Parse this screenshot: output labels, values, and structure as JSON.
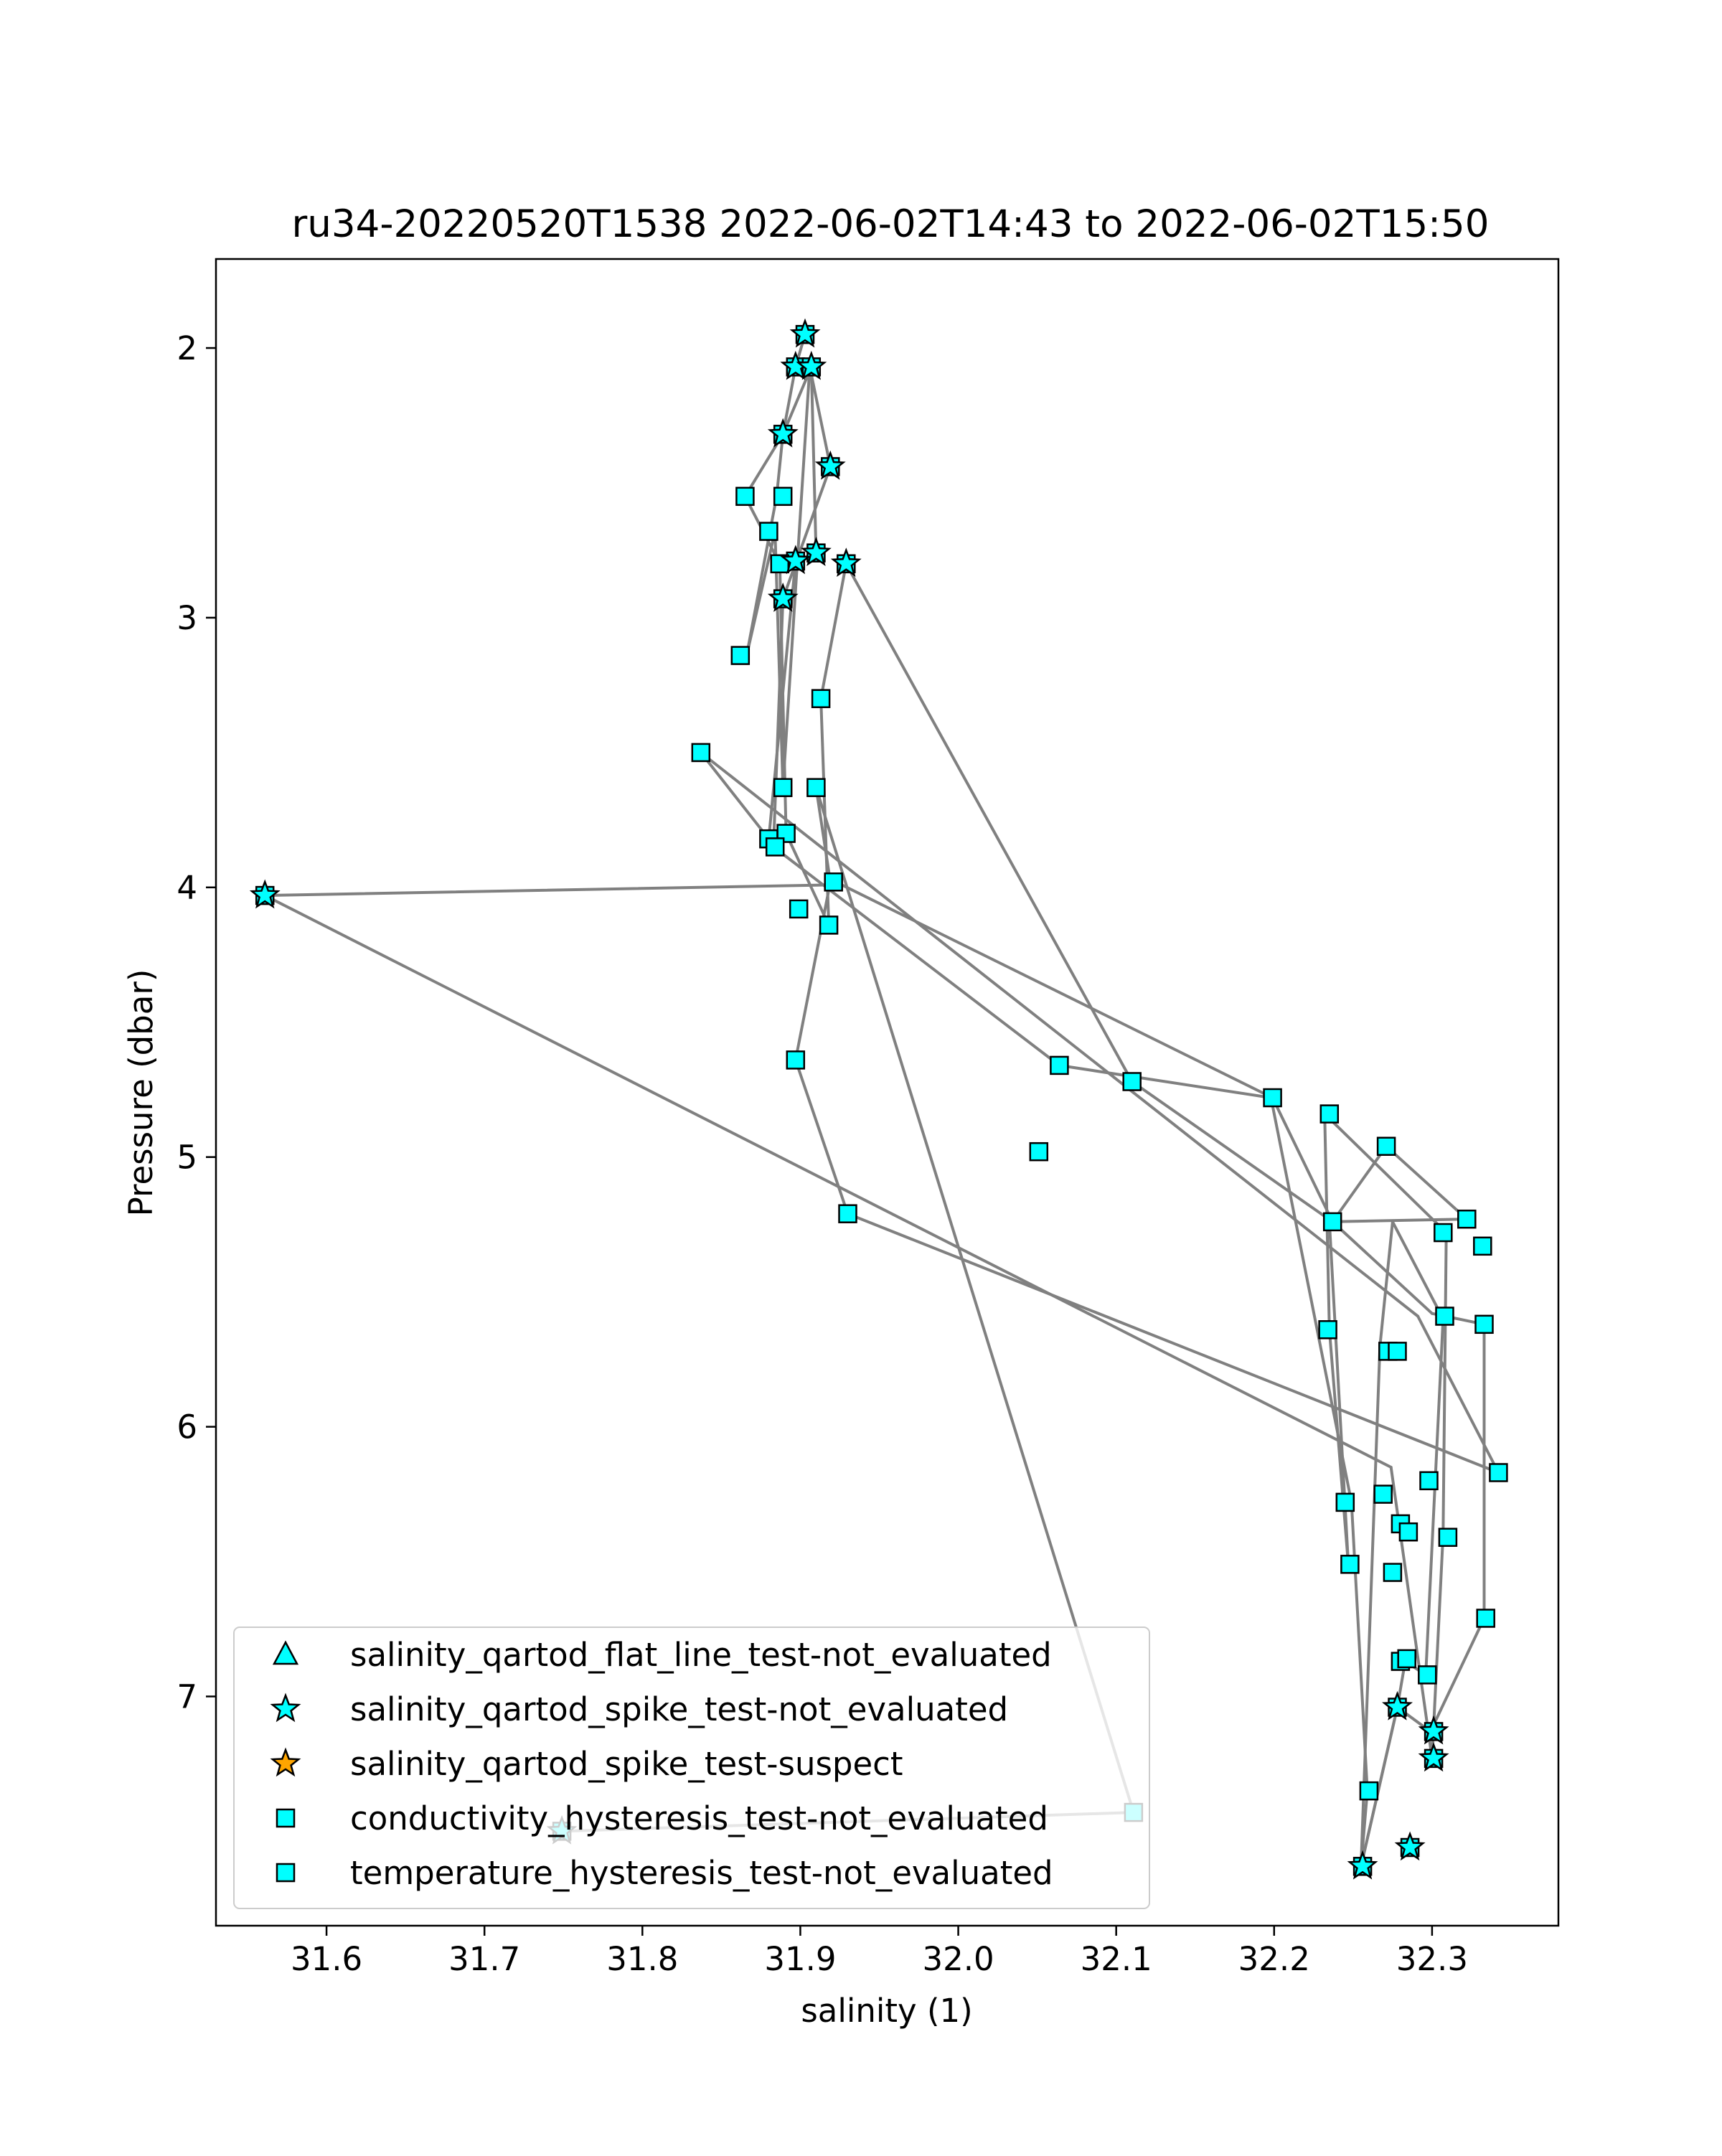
{
  "chart_data": {
    "type": "line",
    "title": "ru34-20220520T1538 2022-06-02T14:43 to 2022-06-02T15:50",
    "xlabel": "salinity (1)",
    "ylabel": "Pressure (dbar)",
    "xlim": [
      31.53,
      32.38
    ],
    "ylim": [
      7.85,
      1.67
    ],
    "y_inverted": true,
    "grid": false,
    "legend_position": "lower-left",
    "xticks": [
      "31.6",
      "31.7",
      "31.8",
      "31.9",
      "32.0",
      "32.1",
      "32.2",
      "32.3"
    ],
    "yticks": [
      "2",
      "3",
      "4",
      "5",
      "6",
      "7"
    ],
    "colors": {
      "line": "#808080",
      "marker_fill": "#00ffff",
      "suspect_fill": "#ffa500",
      "marker_edge": "#000000"
    },
    "path": [
      [
        31.903,
        1.95
      ],
      [
        31.897,
        2.07
      ],
      [
        31.889,
        2.32
      ],
      [
        31.885,
        2.55
      ],
      [
        31.866,
        3.14
      ],
      [
        31.884,
        2.68
      ],
      [
        31.889,
        3.63
      ],
      [
        31.906,
        2.07
      ],
      [
        31.919,
        2.44
      ],
      [
        31.889,
        2.93
      ],
      [
        31.883,
        3.85
      ],
      [
        32.064,
        4.66
      ],
      [
        32.198,
        4.78
      ],
      [
        32.249,
        6.28
      ],
      [
        32.259,
        7.35
      ],
      [
        32.255,
        7.63
      ],
      [
        32.278,
        7.04
      ],
      [
        32.283,
        6.87
      ],
      [
        32.296,
        6.92
      ],
      [
        32.307,
        5.6
      ],
      [
        32.275,
        5.24
      ],
      [
        32.267,
        5.7
      ],
      [
        32.255,
        7.63
      ],
      [
        32.278,
        7.04
      ],
      [
        32.299,
        7.13
      ],
      [
        32.333,
        6.71
      ],
      [
        32.333,
        5.62
      ],
      [
        32.3,
        5.58
      ],
      [
        32.237,
        5.24
      ],
      [
        32.199,
        4.78
      ],
      [
        31.926,
        3.99
      ],
      [
        31.561,
        4.03
      ],
      [
        32.274,
        6.15
      ],
      [
        32.3,
        7.23
      ],
      [
        32.307,
        6.4
      ],
      [
        32.309,
        5.28
      ],
      [
        32.232,
        4.84
      ],
      [
        32.235,
        5.64
      ],
      [
        32.247,
        6.51
      ],
      [
        32.235,
        5.24
      ],
      [
        32.322,
        5.23
      ],
      [
        32.271,
        4.96
      ],
      [
        32.237,
        5.24
      ],
      [
        32.11,
        4.72
      ],
      [
        31.929,
        2.8
      ],
      [
        31.913,
        3.3
      ],
      [
        31.918,
        4.14
      ],
      [
        31.891,
        3.8
      ],
      [
        31.887,
        2.8
      ],
      [
        31.865,
        2.55
      ],
      [
        31.889,
        2.32
      ],
      [
        31.907,
        2.07
      ],
      [
        31.91,
        2.76
      ],
      [
        31.897,
        2.79
      ],
      [
        31.88,
        3.82
      ],
      [
        31.837,
        3.5
      ],
      [
        32.291,
        5.59
      ],
      [
        32.342,
        6.17
      ],
      [
        31.93,
        5.21
      ],
      [
        31.897,
        4.64
      ],
      [
        31.919,
        3.98
      ],
      [
        31.91,
        3.63
      ],
      [
        32.111,
        7.43
      ],
      [
        31.749,
        7.5
      ]
    ],
    "square_markers": [
      [
        31.903,
        1.95
      ],
      [
        31.897,
        2.07
      ],
      [
        31.907,
        2.07
      ],
      [
        31.889,
        2.32
      ],
      [
        31.919,
        2.44
      ],
      [
        31.865,
        2.55
      ],
      [
        31.889,
        2.55
      ],
      [
        31.88,
        2.68
      ],
      [
        31.91,
        2.76
      ],
      [
        31.897,
        2.79
      ],
      [
        31.887,
        2.8
      ],
      [
        31.929,
        2.8
      ],
      [
        31.889,
        2.93
      ],
      [
        31.862,
        3.14
      ],
      [
        31.913,
        3.3
      ],
      [
        31.837,
        3.5
      ],
      [
        31.889,
        3.63
      ],
      [
        31.91,
        3.63
      ],
      [
        31.891,
        3.8
      ],
      [
        31.88,
        3.82
      ],
      [
        31.884,
        3.85
      ],
      [
        31.561,
        4.03
      ],
      [
        31.921,
        3.98
      ],
      [
        31.899,
        4.08
      ],
      [
        31.918,
        4.14
      ],
      [
        31.897,
        4.64
      ],
      [
        32.064,
        4.66
      ],
      [
        32.11,
        4.72
      ],
      [
        32.199,
        4.78
      ],
      [
        32.235,
        4.84
      ],
      [
        32.271,
        4.96
      ],
      [
        32.051,
        4.98
      ],
      [
        31.93,
        5.21
      ],
      [
        32.322,
        5.23
      ],
      [
        32.237,
        5.24
      ],
      [
        32.307,
        5.28
      ],
      [
        32.332,
        5.33
      ],
      [
        32.308,
        5.59
      ],
      [
        32.333,
        5.62
      ],
      [
        32.234,
        5.64
      ],
      [
        32.272,
        5.72
      ],
      [
        32.278,
        5.72
      ],
      [
        32.342,
        6.17
      ],
      [
        32.298,
        6.2
      ],
      [
        32.269,
        6.25
      ],
      [
        32.245,
        6.28
      ],
      [
        32.28,
        6.36
      ],
      [
        32.285,
        6.39
      ],
      [
        32.31,
        6.41
      ],
      [
        32.248,
        6.51
      ],
      [
        32.275,
        6.54
      ],
      [
        32.334,
        6.71
      ],
      [
        32.28,
        6.87
      ],
      [
        32.284,
        6.86
      ],
      [
        32.297,
        6.92
      ],
      [
        32.278,
        7.04
      ],
      [
        32.301,
        7.13
      ],
      [
        32.301,
        7.23
      ],
      [
        32.26,
        7.35
      ],
      [
        32.111,
        7.43
      ],
      [
        31.749,
        7.5
      ],
      [
        32.286,
        7.56
      ],
      [
        32.256,
        7.63
      ]
    ],
    "star_markers": [
      [
        31.903,
        1.95
      ],
      [
        31.897,
        2.07
      ],
      [
        31.907,
        2.07
      ],
      [
        31.889,
        2.32
      ],
      [
        31.919,
        2.44
      ],
      [
        31.91,
        2.76
      ],
      [
        31.897,
        2.79
      ],
      [
        31.929,
        2.8
      ],
      [
        31.889,
        2.93
      ],
      [
        31.561,
        4.03
      ],
      [
        32.278,
        7.04
      ],
      [
        32.301,
        7.13
      ],
      [
        32.301,
        7.23
      ],
      [
        31.749,
        7.5
      ],
      [
        32.286,
        7.56
      ],
      [
        32.256,
        7.63
      ]
    ],
    "legend": [
      {
        "label": "salinity_qartod_flat_line_test-not_evaluated",
        "marker": "triangle",
        "color": "#00ffff"
      },
      {
        "label": "salinity_qartod_spike_test-not_evaluated",
        "marker": "star",
        "color": "#00ffff"
      },
      {
        "label": "salinity_qartod_spike_test-suspect",
        "marker": "star",
        "color": "#ffa500"
      },
      {
        "label": "conductivity_hysteresis_test-not_evaluated",
        "marker": "square",
        "color": "#00ffff"
      },
      {
        "label": "temperature_hysteresis_test-not_evaluated",
        "marker": "square",
        "color": "#00ffff"
      }
    ]
  }
}
